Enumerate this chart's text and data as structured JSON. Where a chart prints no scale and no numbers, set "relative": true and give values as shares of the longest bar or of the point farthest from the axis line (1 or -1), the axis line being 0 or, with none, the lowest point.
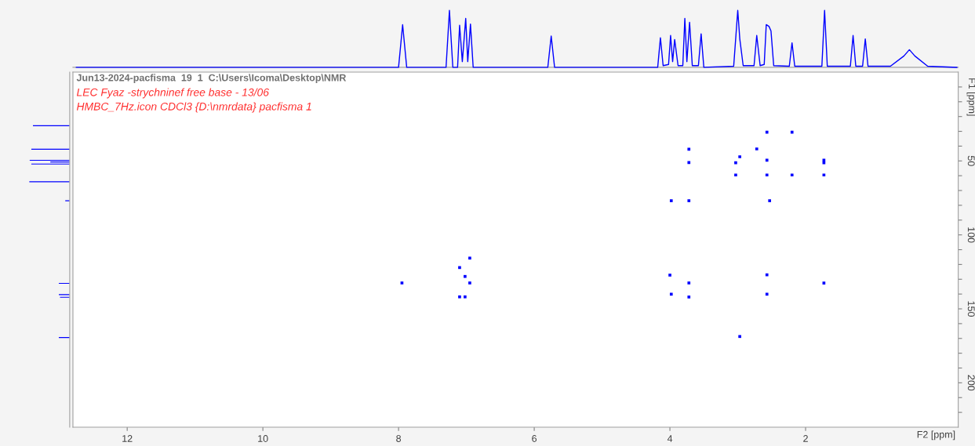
{
  "chart_data": [
    {
      "type": "line",
      "relative": true,
      "tick_labels": false,
      "xlim": [
        12.8,
        -0.25
      ],
      "color": "#0000ff",
      "x": [
        12.75,
        8.0,
        7.94,
        7.88,
        7.3,
        7.25,
        7.2,
        7.13,
        7.1,
        7.06,
        7.01,
        6.98,
        6.94,
        6.9,
        5.8,
        5.75,
        5.7,
        4.18,
        4.14,
        4.1,
        4.02,
        3.99,
        3.96,
        3.93,
        3.88,
        3.81,
        3.78,
        3.75,
        3.71,
        3.67,
        3.58,
        3.54,
        3.5,
        3.06,
        3.0,
        2.97,
        2.92,
        2.76,
        2.72,
        2.67,
        2.61,
        2.58,
        2.54,
        2.51,
        2.47,
        2.24,
        2.2,
        2.16,
        1.76,
        1.72,
        1.68,
        1.34,
        1.3,
        1.26,
        1.16,
        1.12,
        1.08,
        0.75,
        0.55,
        0.47,
        0.39,
        0.2,
        -0.23
      ],
      "values": [
        0,
        0,
        0.75,
        0,
        0,
        1.0,
        0,
        0,
        0.74,
        0.1,
        0.86,
        0.1,
        0.76,
        0,
        0,
        0.55,
        0,
        0,
        0.52,
        0.03,
        0.05,
        0.56,
        0.1,
        0.49,
        0.03,
        0.03,
        0.86,
        0.1,
        0.79,
        0.03,
        0.03,
        0.59,
        0,
        0.02,
        1.0,
        0.5,
        0.03,
        0.03,
        0.56,
        0.03,
        0.05,
        0.75,
        0.72,
        0.64,
        0.03,
        0.02,
        0.43,
        0.02,
        0.02,
        1.0,
        0.02,
        0.02,
        0.56,
        0.02,
        0.02,
        0.5,
        0.02,
        0.02,
        0.2,
        0.31,
        0.2,
        0.02,
        0
      ]
    },
    {
      "type": "bar",
      "orientation": "horizontal",
      "relative": true,
      "tick_labels": false,
      "ylim": [
        230,
        -10
      ],
      "color": "#0000ff",
      "x": [
        26.2,
        42.1,
        49.6,
        50.7,
        52.1,
        64.1,
        76.9,
        116,
        123,
        125,
        129,
        132.8,
        140.4,
        142.2,
        169.4
      ],
      "values": [
        0.91,
        0.95,
        0.99,
        0.48,
        0.95,
        1.0,
        0.11,
        null,
        null,
        null,
        null,
        0.27,
        0.27,
        0.24,
        0.27
      ]
    },
    {
      "type": "scatter",
      "title": "Jun13-2024-pacfisma  19  1  C:\\Users\\Icoma\\Desktop\\NMR",
      "annotations": [
        "LEC Fyaz -strychninef free base - 13/06",
        "HMBC_7Hz.icon CDCl3 {D:\\nmrdata} pacfisma 1"
      ],
      "xlabel": "F2 [ppm]",
      "ylabel": "F1 [ppm]",
      "marker": "square",
      "color": "#0000ff",
      "xlim": [
        12.8,
        -0.25
      ],
      "xticks": [
        12,
        10,
        8,
        6,
        4,
        2
      ],
      "ylim": [
        230,
        -10
      ],
      "yticks": [
        {
          "value": 0,
          "label": null
        },
        {
          "value": 10,
          "label": null
        },
        {
          "value": 20,
          "label": null
        },
        {
          "value": 30,
          "label": null
        },
        {
          "value": 40,
          "label": null
        },
        50,
        {
          "value": 60,
          "label": null
        },
        {
          "value": 70,
          "label": null
        },
        {
          "value": 80,
          "label": null
        },
        {
          "value": 90,
          "label": null
        },
        100,
        {
          "value": 110,
          "label": null
        },
        {
          "value": 120,
          "label": null
        },
        {
          "value": 130,
          "label": null
        },
        {
          "value": 140,
          "label": null
        },
        150,
        {
          "value": 160,
          "label": null
        },
        {
          "value": 170,
          "label": null
        },
        {
          "value": 180,
          "label": null
        },
        {
          "value": 190,
          "label": null
        },
        200,
        {
          "value": 210,
          "label": null
        },
        {
          "value": 220,
          "label": null
        }
      ],
      "x": [
        3.72,
        3.72,
        3.98,
        3.72,
        6.95,
        7.1,
        7.02,
        7.95,
        6.95,
        7.1,
        7.02,
        4.0,
        3.72,
        3.98,
        3.72,
        2.57,
        2.2,
        2.72,
        2.97,
        3.03,
        2.57,
        1.73,
        1.73,
        3.03,
        2.57,
        2.2,
        1.73,
        2.53,
        2.57,
        1.73,
        2.57,
        2.97
      ],
      "values": [
        42.1,
        51.1,
        76.9,
        76.9,
        115.7,
        122.1,
        128.1,
        132.5,
        132.5,
        141.9,
        141.9,
        127.2,
        132.5,
        140.1,
        142.0,
        30.6,
        30.6,
        41.9,
        47.2,
        51.2,
        49.5,
        49.5,
        51.3,
        59.5,
        59.5,
        59.5,
        59.5,
        76.9,
        127.0,
        132.6,
        140.1,
        168.7
      ]
    }
  ]
}
